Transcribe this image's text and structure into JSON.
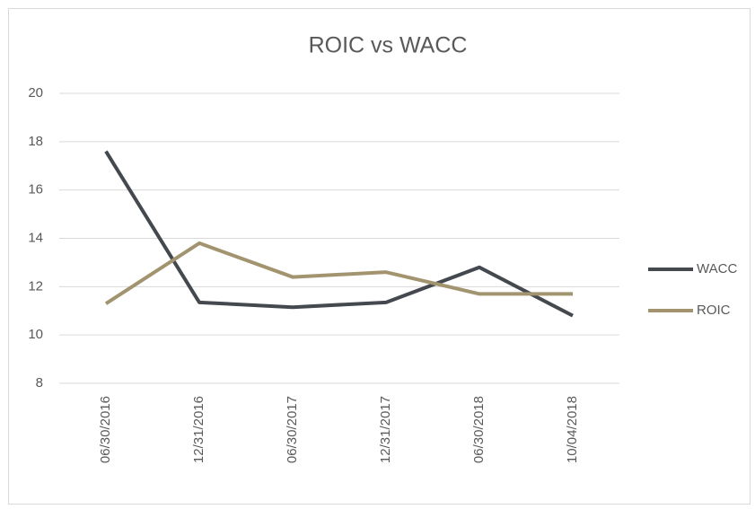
{
  "chart_data": {
    "type": "line",
    "title": "ROIC vs WACC",
    "categories": [
      "06/30/2016",
      "12/31/2016",
      "06/30/2017",
      "12/31/2017",
      "06/30/2018",
      "10/04/2018"
    ],
    "series": [
      {
        "name": "WACC",
        "color": "#44484f",
        "values": [
          17.6,
          11.35,
          11.15,
          11.35,
          12.8,
          10.8
        ]
      },
      {
        "name": "ROIC",
        "color": "#a39470",
        "values": [
          11.3,
          13.8,
          12.4,
          12.6,
          11.7,
          11.7
        ]
      }
    ],
    "ylim": [
      8,
      20
    ],
    "yticks": [
      8,
      10,
      12,
      14,
      16,
      18,
      20
    ],
    "grid": true,
    "legend": "right"
  }
}
